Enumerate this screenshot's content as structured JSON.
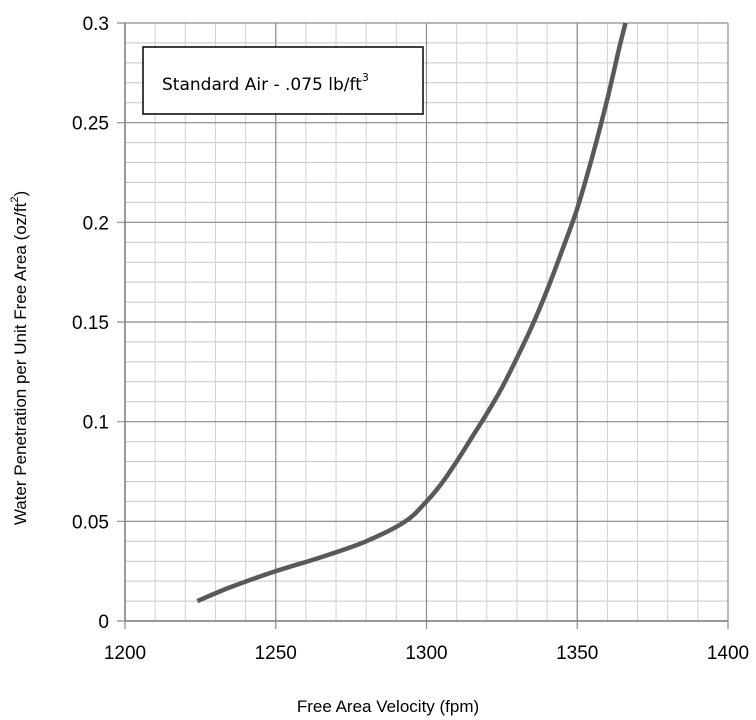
{
  "chart_data": {
    "type": "line",
    "title": "",
    "xlabel": "Free Area Velocity (fpm)",
    "ylabel": {
      "main": "Water Penetration per Unit Free Area (oz/ft",
      "sup": "2",
      "end": ")"
    },
    "annotation": {
      "main": "Standard Air - .075 lb/ft",
      "sup": "3"
    },
    "xlim": [
      1200,
      1400
    ],
    "ylim": [
      0,
      0.3
    ],
    "x_ticks": [
      "1200",
      "1250",
      "1300",
      "1350",
      "1400"
    ],
    "y_ticks": [
      "0",
      "0.05",
      "0.1",
      "0.15",
      "0.2",
      "0.25",
      "0.3"
    ],
    "x_tick_values": [
      1200,
      1250,
      1300,
      1350,
      1400
    ],
    "y_tick_values": [
      0,
      0.05,
      0.1,
      0.15,
      0.2,
      0.25,
      0.3
    ],
    "x_minor_step": 10,
    "y_minor_step": 0.01,
    "grid": true,
    "legend": "none",
    "series": [
      {
        "color": "#595959",
        "x": [
          1224,
          1235,
          1250,
          1265,
          1280,
          1293,
          1300,
          1305,
          1310,
          1315,
          1320,
          1325,
          1330,
          1335,
          1340,
          1345,
          1350,
          1355,
          1360,
          1364,
          1366
        ],
        "y": [
          0.01,
          0.017,
          0.025,
          0.032,
          0.04,
          0.05,
          0.06,
          0.069,
          0.08,
          0.092,
          0.104,
          0.117,
          0.132,
          0.148,
          0.166,
          0.186,
          0.207,
          0.233,
          0.262,
          0.288,
          0.3
        ]
      }
    ]
  }
}
